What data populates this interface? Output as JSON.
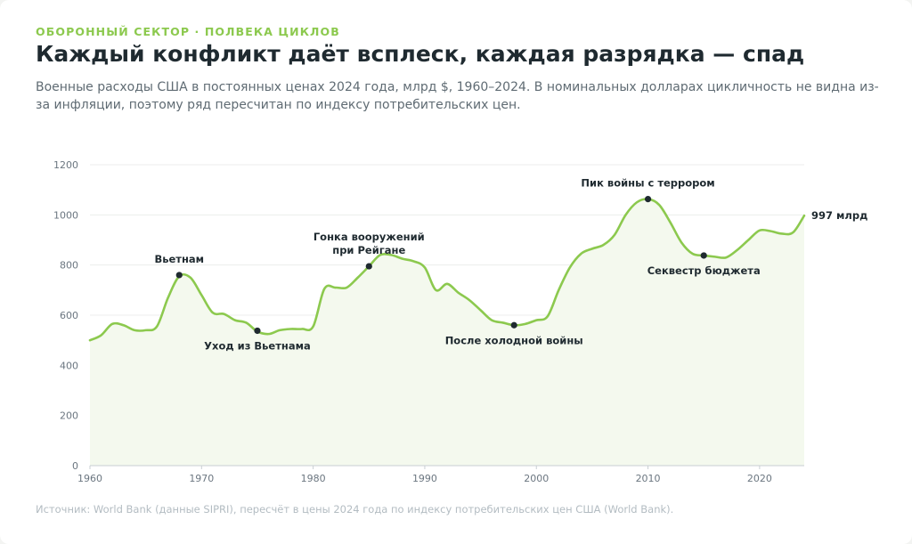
{
  "header": {
    "kicker": "ОБОРОННЫЙ СЕКТОР · ПОЛВЕКА ЦИКЛОВ",
    "title": "Каждый конфликт даёт всплеск, каждая разрядка — спад",
    "subtitle": "Военные расходы США в постоянных ценах 2024 года, млрд $, 1960–2024. В номинальных долларах цикличность не видна из-за инфляции, поэтому ряд пересчитан по индексу потребительских цен."
  },
  "footer": {
    "source": "Источник: World Bank (данные SIPRI), пересчёт в цены 2024 года по индексу потребительских цен США (World Bank)."
  },
  "colors": {
    "line": "#8cc94e",
    "area": "#f4f9ee",
    "marker": "#1f2a30",
    "grid": "#eceeec",
    "axis": "#c9cfd3"
  },
  "chart_data": {
    "type": "area",
    "title": "Каждый конфликт даёт всплеск, каждая разрядка — спад",
    "xlabel": "",
    "ylabel": "",
    "xlim": [
      1960,
      2024
    ],
    "ylim": [
      0,
      1200
    ],
    "xticks": [
      1960,
      1970,
      1980,
      1990,
      2000,
      2010,
      2020
    ],
    "yticks": [
      0,
      200,
      400,
      600,
      800,
      1000,
      1200
    ],
    "grid": true,
    "series": [
      {
        "name": "",
        "x": [
          1960,
          1961,
          1962,
          1963,
          1964,
          1965,
          1966,
          1967,
          1968,
          1969,
          1970,
          1971,
          1972,
          1973,
          1974,
          1975,
          1976,
          1977,
          1978,
          1979,
          1980,
          1981,
          1982,
          1983,
          1984,
          1985,
          1986,
          1987,
          1988,
          1989,
          1990,
          1991,
          1992,
          1993,
          1994,
          1995,
          1996,
          1997,
          1998,
          1999,
          2000,
          2001,
          2002,
          2003,
          2004,
          2005,
          2006,
          2007,
          2008,
          2009,
          2010,
          2011,
          2012,
          2013,
          2014,
          2015,
          2016,
          2017,
          2018,
          2019,
          2020,
          2021,
          2022,
          2023,
          2024
        ],
        "values": [
          500,
          520,
          565,
          560,
          540,
          540,
          555,
          670,
          755,
          750,
          680,
          610,
          605,
          580,
          570,
          535,
          525,
          540,
          545,
          545,
          555,
          705,
          710,
          710,
          750,
          795,
          840,
          840,
          825,
          815,
          790,
          700,
          725,
          690,
          660,
          620,
          580,
          570,
          560,
          565,
          580,
          595,
          700,
          790,
          845,
          865,
          880,
          920,
          1000,
          1050,
          1063,
          1040,
          970,
          890,
          845,
          838,
          833,
          830,
          860,
          900,
          938,
          935,
          925,
          930,
          997
        ]
      }
    ],
    "annotations": [
      {
        "x": 1968,
        "y": 760,
        "text": [
          "Вьетнам"
        ],
        "position": "above"
      },
      {
        "x": 1975,
        "y": 538,
        "text": [
          "Уход из Вьетнама"
        ],
        "position": "below"
      },
      {
        "x": 1985,
        "y": 795,
        "text": [
          "Гонка вооружений",
          "при Рейгане"
        ],
        "position": "above"
      },
      {
        "x": 1998,
        "y": 560,
        "text": [
          "После холодной войны"
        ],
        "position": "below"
      },
      {
        "x": 2010,
        "y": 1063,
        "text": [
          "Пик войны с террором"
        ],
        "position": "above"
      },
      {
        "x": 2015,
        "y": 838,
        "text": [
          "Секвестр бюджета"
        ],
        "position": "below"
      }
    ],
    "end_label": "997 млрд"
  }
}
